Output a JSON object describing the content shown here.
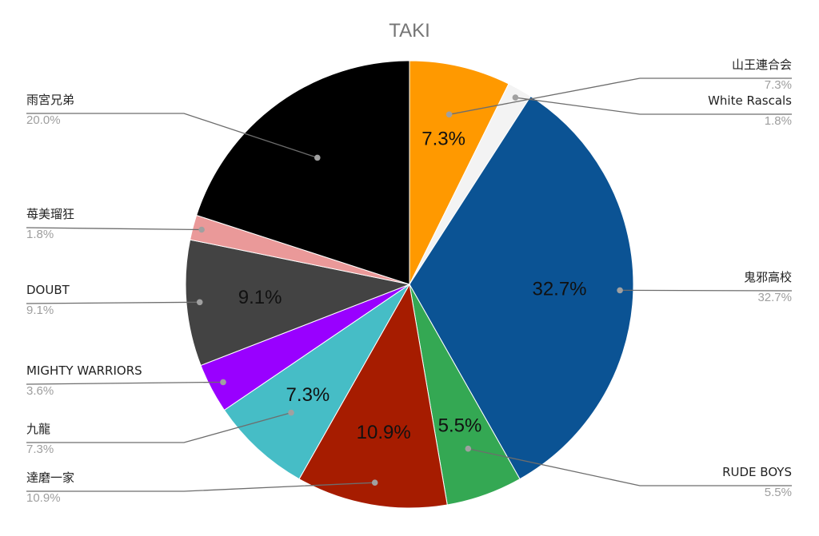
{
  "chart_data": {
    "type": "pie",
    "title": "TAKI",
    "slices": [
      {
        "name": "山王連合会",
        "value": 7.3,
        "label": "7.3%",
        "color": "#ff9900"
      },
      {
        "name": "White Rascals",
        "value": 1.8,
        "label": "1.8%",
        "color": "#f3f3f3"
      },
      {
        "name": "鬼邪高校",
        "value": 32.7,
        "label": "32.7%",
        "color": "#0b5394"
      },
      {
        "name": "RUDE BOYS",
        "value": 5.5,
        "label": "5.5%",
        "color": "#34a853"
      },
      {
        "name": "達磨一家",
        "value": 10.9,
        "label": "10.9%",
        "color": "#a61c00"
      },
      {
        "name": "九龍",
        "value": 7.3,
        "label": "7.3%",
        "color": "#46bdc6"
      },
      {
        "name": "MIGHTY WARRIORS",
        "value": 3.6,
        "label": "3.6%",
        "color": "#9900ff"
      },
      {
        "name": "DOUBT",
        "value": 9.1,
        "label": "9.1%",
        "color": "#434343"
      },
      {
        "name": "苺美瑠狂",
        "value": 1.8,
        "label": "1.8%",
        "color": "#ea9999"
      },
      {
        "name": "雨宮兄弟",
        "value": 20.0,
        "label": "20.0%",
        "color": "#000000"
      }
    ],
    "inner_labels": [
      "7.3%",
      "32.7%",
      "5.5%",
      "10.9%",
      "7.3%",
      "9.1%"
    ],
    "legend": "none"
  }
}
